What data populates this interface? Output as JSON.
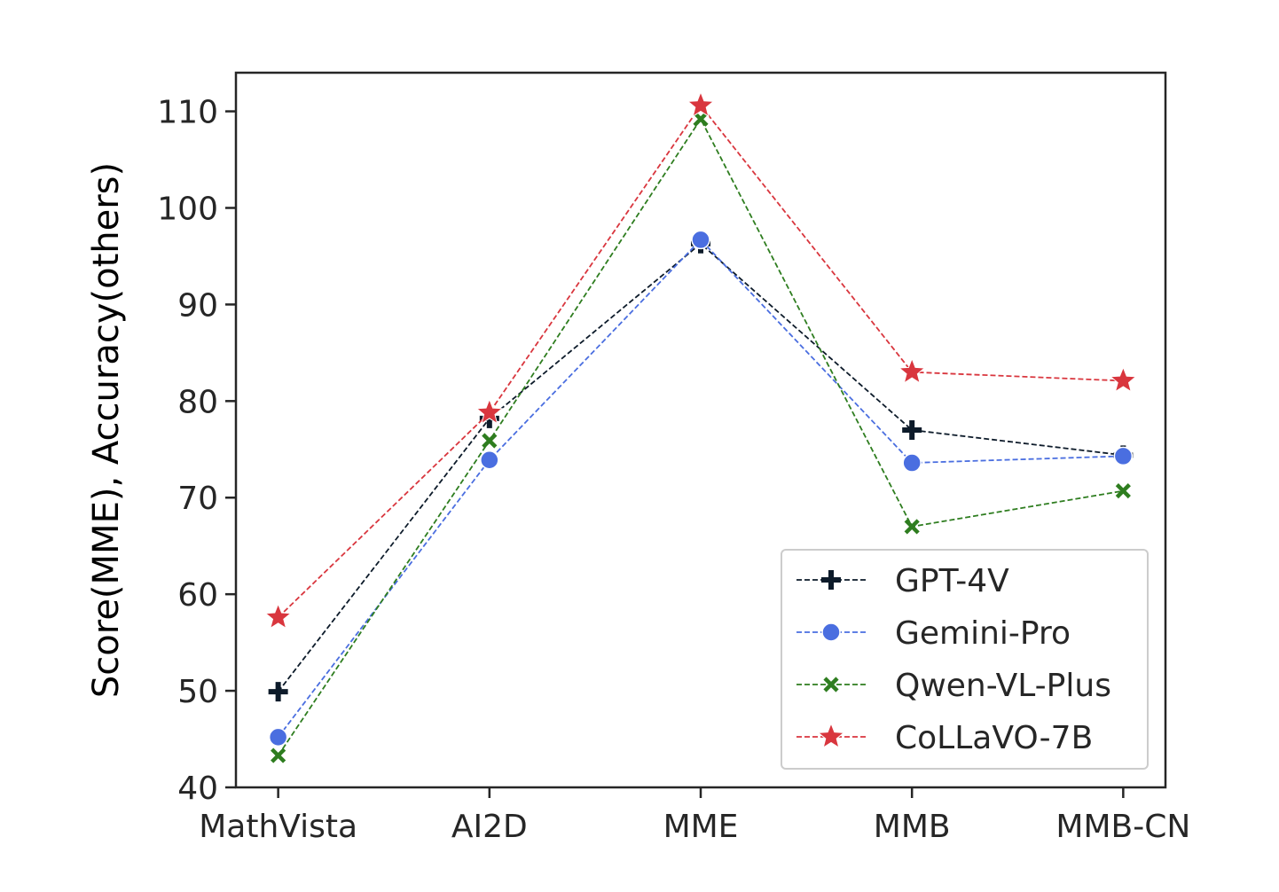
{
  "chart_data": {
    "type": "line",
    "title": "",
    "xlabel": "",
    "ylabel": "Score(MME),  Accuracy(others)",
    "categories": [
      "MathVista",
      "AI2D",
      "MME",
      "MMB",
      "MMB-CN"
    ],
    "ylim": [
      40,
      114
    ],
    "yticks": [
      40,
      50,
      60,
      70,
      80,
      90,
      100,
      110
    ],
    "grid": false,
    "legend_position": "bottom-right",
    "series": [
      {
        "name": "GPT-4V",
        "color": "#0d1b2a",
        "marker": "plus",
        "values": [
          49.9,
          78.2,
          96.3,
          77.0,
          74.4
        ]
      },
      {
        "name": "Gemini-Pro",
        "color": "#4a6ee0",
        "marker": "circle",
        "values": [
          45.2,
          73.9,
          96.7,
          73.6,
          74.3
        ]
      },
      {
        "name": "Qwen-VL-Plus",
        "color": "#2e7d1f",
        "marker": "x",
        "values": [
          43.3,
          75.9,
          109.2,
          67.0,
          70.7
        ]
      },
      {
        "name": "CoLLaVO-7B",
        "color": "#d9363e",
        "marker": "star",
        "values": [
          57.6,
          78.8,
          110.6,
          83.0,
          82.1
        ]
      }
    ]
  }
}
